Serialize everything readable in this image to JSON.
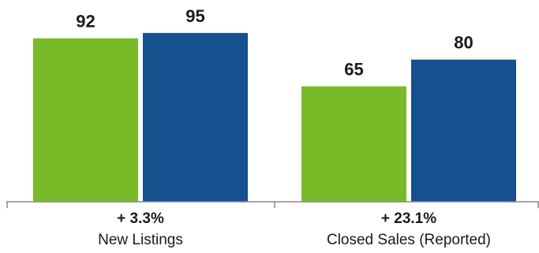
{
  "chart_data": {
    "type": "bar",
    "categories": [
      "New Listings",
      "Closed Sales (Reported)"
    ],
    "changes": [
      "+ 3.3%",
      "+ 23.1%"
    ],
    "series": [
      {
        "values": [
          92,
          65
        ],
        "color": "#78bb28"
      },
      {
        "values": [
          95,
          80
        ],
        "color": "#17508f"
      }
    ],
    "ylim": [
      0,
      110
    ],
    "grid": false,
    "axis_color": "#888888"
  }
}
